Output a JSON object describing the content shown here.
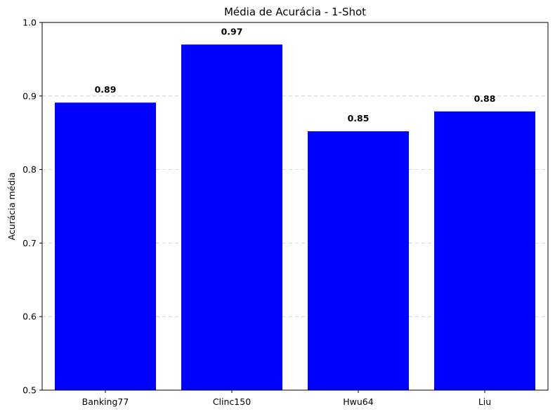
{
  "chart_data": {
    "type": "bar",
    "title": "Média de Acurácia - 1-Shot",
    "xlabel": "",
    "ylabel": "Acurácia média",
    "categories": [
      "Banking77",
      "Clinc150",
      "Hwu64",
      "Liu"
    ],
    "values": [
      0.891,
      0.97,
      0.852,
      0.879
    ],
    "data_labels": [
      "0.89",
      "0.97",
      "0.85",
      "0.88"
    ],
    "ylim": [
      0.5,
      1.0
    ],
    "yticks": [
      0.5,
      0.6,
      0.7,
      0.8,
      0.9,
      1.0
    ],
    "ytick_labels": [
      "0.5",
      "0.6",
      "0.7",
      "0.8",
      "0.9",
      "1.0"
    ],
    "grid": "y-axis dashed",
    "bar_color": "#0000ff",
    "grid_color": "#cccccc"
  }
}
